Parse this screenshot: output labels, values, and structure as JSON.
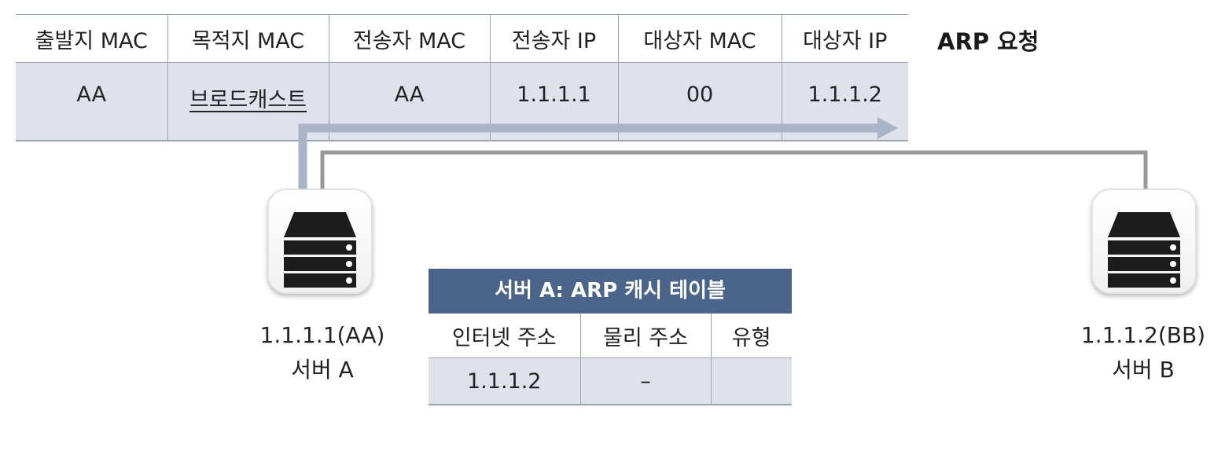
{
  "arp_request": {
    "title": "ARP 요청",
    "headers": [
      "출발지 MAC",
      "목적지 MAC",
      "전송자 MAC",
      "전송자 IP",
      "대상자 MAC",
      "대상자 IP"
    ],
    "values": [
      "AA",
      "브로드캐스트",
      "AA",
      "1.1.1.1",
      "00",
      "1.1.1.2"
    ]
  },
  "servers": [
    {
      "address": "1.1.1.1(AA)",
      "name": "서버 A",
      "icon": "server-icon"
    },
    {
      "address": "1.1.1.2(BB)",
      "name": "서버 B",
      "icon": "server-icon"
    }
  ],
  "arp_cache": {
    "title": "서버 A: ARP 캐시 테이블",
    "headers": [
      "인터넷 주소",
      "물리 주소",
      "유형"
    ],
    "rows": [
      [
        "1.1.1.2",
        "–",
        ""
      ]
    ]
  },
  "colors": {
    "table_fill": "#dfe2ea",
    "cache_header": "#4b6489",
    "request_arrow": "#a9b4c6",
    "link_line": "#999999"
  }
}
